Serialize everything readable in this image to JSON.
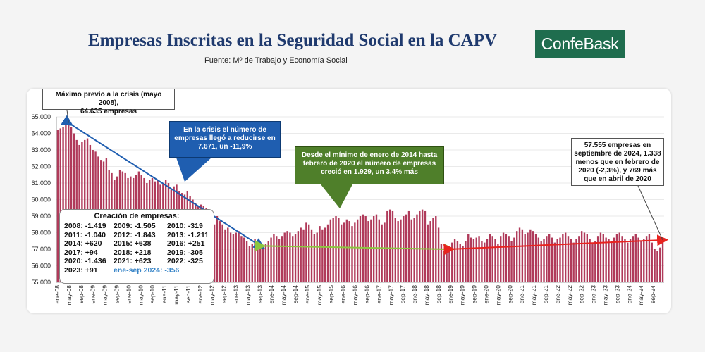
{
  "title": "Empresas Inscritas en la Seguridad Social en la CAPV",
  "source": "Fuente: Mº de Trabajo y Economía Social",
  "logo": "ConfeBask",
  "colors": {
    "bars": "#b03a5a",
    "crisis_arrow": "#1f5eb0",
    "recovery_arrow": "#8cc63f",
    "decline_arrow": "#e8231f",
    "title": "#1f3a6e"
  },
  "callouts": {
    "max_line1": "Máximo previo a la crisis (mayo 2008),",
    "max_line2": "64.635  empresas",
    "crisis": "En la crisis el número de empresas llegó a reducirse en 7.671, un -11,9%",
    "recovery": "Desde el mínimo de enero de 2014 hasta febrero de 2020 el número de empresas creció en 1.929, un 3,4% más",
    "last": "57.555 empresas en septiembre de 2024, 1.338 menos que en febrero de 2020 (-2,3%), y 769 más que en abril de 2020"
  },
  "creation": {
    "title": "Creación de empresas:",
    "rows": [
      [
        {
          "y": "2008:",
          "v": "-1.419"
        },
        {
          "y": "2009:",
          "v": "-1.505"
        },
        {
          "y": "2010:",
          "v": "-319"
        }
      ],
      [
        {
          "y": "2011:",
          "v": "-1.040"
        },
        {
          "y": "2012:",
          "v": "-1.843"
        },
        {
          "y": "2013:",
          "v": "-1.211"
        }
      ],
      [
        {
          "y": "2014:",
          "v": "+620"
        },
        {
          "y": "2015:",
          "v": "+638"
        },
        {
          "y": "2016:",
          "v": "+251"
        }
      ],
      [
        {
          "y": "2017:",
          "v": "+94"
        },
        {
          "y": "2018:",
          "v": "+218"
        },
        {
          "y": "2019:",
          "v": "-305"
        }
      ],
      [
        {
          "y": "2020:",
          "v": "-1.436"
        },
        {
          "y": "2021:",
          "v": "+623"
        },
        {
          "y": "2022:",
          "v": "-325"
        }
      ]
    ],
    "last_row": {
      "y": "2023:",
      "v": "+91",
      "highlight": "ene-sep 2024:   -356"
    }
  },
  "chart_data": {
    "type": "bar",
    "ylim": [
      55000,
      65000
    ],
    "yticks": [
      "55.000",
      "56.000",
      "57.000",
      "58.000",
      "59.000",
      "60.000",
      "61.000",
      "62.000",
      "63.000",
      "64.000",
      "65.000"
    ],
    "xlabels": [
      "ene-08",
      "may-08",
      "sep-08",
      "ene-09",
      "may-09",
      "sep-09",
      "ene-10",
      "may-10",
      "sep-10",
      "ene-11",
      "may-11",
      "sep-11",
      "ene-12",
      "may-12",
      "sep-12",
      "ene-13",
      "may-13",
      "sep-13",
      "ene-14",
      "may-14",
      "sep-14",
      "ene-15",
      "may-15",
      "sep-15",
      "ene-16",
      "may-16",
      "sep-16",
      "ene-17",
      "may-17",
      "sep-17",
      "ene-18",
      "may-18",
      "sep-18",
      "ene-19",
      "may-19",
      "sep-19",
      "ene-20",
      "may-20",
      "sep-20",
      "ene-21",
      "may-21",
      "sep-21",
      "ene-22",
      "may-22",
      "sep-22",
      "ene-23",
      "may-23",
      "sep-23",
      "ene-24",
      "may-24",
      "sep-24"
    ],
    "values": [
      64200,
      64300,
      64400,
      64500,
      64635,
      64400,
      64000,
      63600,
      63300,
      63500,
      63600,
      63700,
      63300,
      63000,
      62900,
      62600,
      62400,
      62300,
      62500,
      61800,
      61600,
      61200,
      61400,
      61800,
      61700,
      61600,
      61300,
      61400,
      61300,
      61500,
      61700,
      61500,
      61300,
      61000,
      61200,
      61300,
      61100,
      61200,
      60900,
      61000,
      61200,
      61000,
      60600,
      60800,
      60900,
      60500,
      60400,
      60300,
      60500,
      60200,
      60000,
      59800,
      59600,
      59700,
      59600,
      59500,
      59100,
      58800,
      58500,
      59000,
      58700,
      58500,
      58200,
      58300,
      58000,
      57900,
      58000,
      58100,
      57800,
      57700,
      57500,
      57200,
      57300,
      57600,
      57400,
      57200,
      57100,
      57300,
      57500,
      57700,
      57900,
      57800,
      57600,
      57800,
      58000,
      58100,
      58000,
      57800,
      57900,
      58100,
      58300,
      58200,
      58600,
      58500,
      58200,
      57900,
      58000,
      58400,
      58200,
      58300,
      58500,
      58800,
      58900,
      59000,
      58900,
      58500,
      58600,
      58800,
      58700,
      58400,
      58600,
      58800,
      59000,
      59100,
      59000,
      58700,
      58800,
      59000,
      59100,
      58800,
      58500,
      58600,
      59300,
      59400,
      59300,
      58900,
      58700,
      58800,
      59000,
      59100,
      59300,
      58800,
      58900,
      59100,
      59300,
      59400,
      59300,
      58500,
      58700,
      58900,
      59000,
      58300,
      57300,
      56900,
      56800,
      57000,
      57400,
      57600,
      57500,
      57300,
      57200,
      57500,
      57900,
      57700,
      57600,
      57700,
      57800,
      57500,
      57400,
      57600,
      57900,
      57800,
      57600,
      57300,
      57800,
      58000,
      57900,
      57800,
      57500,
      57700,
      58100,
      58300,
      58200,
      57900,
      58000,
      58200,
      58100,
      57900,
      57700,
      57500,
      57600,
      57800,
      57900,
      57700,
      57400,
      57600,
      57700,
      57900,
      58000,
      57800,
      57600,
      57400,
      57600,
      57800,
      58100,
      58000,
      57900,
      57600,
      57300,
      57500,
      57800,
      58000,
      57900,
      57700,
      57600,
      57500,
      57700,
      57900,
      58000,
      57800,
      57600,
      57400,
      57600,
      57800,
      57900,
      57700,
      57500,
      57600,
      57800,
      57900,
      57400,
      57000,
      56900,
      57100,
      57555
    ]
  }
}
